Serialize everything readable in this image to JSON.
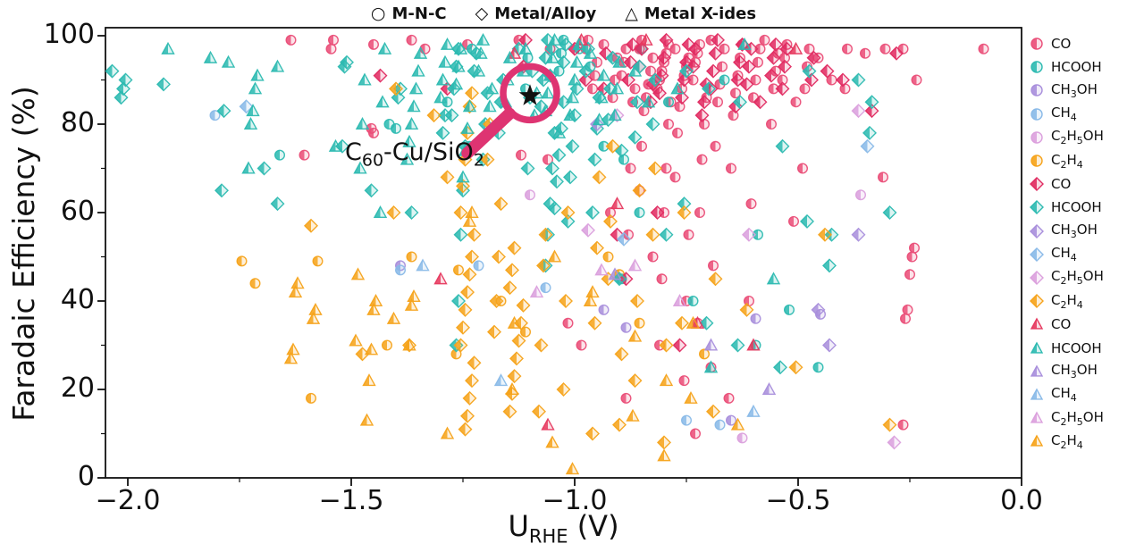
{
  "figure": {
    "shape_legend": [
      {
        "glyph": "○",
        "label": "M-N-C"
      },
      {
        "glyph": "◇",
        "label": "Metal/Alloy"
      },
      {
        "glyph": "△",
        "label": "Metal X-ides"
      }
    ],
    "x_axis": {
      "label_main": "U",
      "label_sub": "RHE",
      "label_unit": " (V)",
      "tick_labels": [
        "−2.0",
        "−1.5",
        "−1.0",
        "−0.5",
        "0.0"
      ]
    },
    "y_axis": {
      "label": "Faradaic Efficiency (%)",
      "tick_labels": [
        "0",
        "20",
        "40",
        "60",
        "80",
        "100"
      ]
    }
  },
  "chart_data": {
    "type": "scatter",
    "title": "",
    "xlabel": "U_RHE (V)",
    "ylabel": "Faradaic Efficiency (%)",
    "xlim": [
      -2.05,
      0.0
    ],
    "ylim": [
      0,
      102
    ],
    "xticks": [
      -2.0,
      -1.5,
      -1.0,
      -0.5,
      0.0
    ],
    "xticks_minor": [
      -1.75,
      -1.25,
      -0.75,
      -0.25
    ],
    "yticks": [
      0,
      20,
      40,
      60,
      80,
      100
    ],
    "yticks_minor": [
      10,
      30,
      50,
      70,
      90
    ],
    "grid": false,
    "legend_position": "right",
    "shape_groups": [
      {
        "shape": "circle",
        "label": "M-N-C"
      },
      {
        "shape": "diamond",
        "label": "Metal/Alloy"
      },
      {
        "shape": "triangle",
        "label": "Metal X-ides"
      }
    ],
    "product_colors": {
      "CO": "#E8426E",
      "HCOOH": "#2DBAB1",
      "CH3OH": "#A98FDC",
      "CH4": "#8ABAE8",
      "C2H5OH": "#DBA0DD",
      "C2H4": "#F6A31B"
    },
    "annotation": {
      "text": "C60-Cu/SiO2",
      "star": [
        -1.1,
        87
      ],
      "accent_color": "#DE3472",
      "star_color": "#111111"
    },
    "series": [
      {
        "shape": "circle",
        "product": "CO",
        "color": "#EA4E78",
        "cols": {
          "-1.62": [
            99,
            73
          ],
          "-1.55": [
            99,
            97
          ],
          "-1.45": [
            98,
            79
          ],
          "-1.44": [
            78
          ],
          "-1.35": [
            99,
            97
          ],
          "-1.25": [
            98
          ],
          "-1.13": [
            99
          ],
          "-1.12": [
            73
          ],
          "-1.05": [
            97,
            72
          ],
          "-1.0": [
            35,
            30
          ],
          "-0.98": [
            99,
            97
          ],
          "-0.95": [
            94,
            91,
            88
          ],
          "-0.92": [
            98,
            95,
            90,
            86,
            60
          ],
          "-0.88": [
            97,
            94,
            91,
            88,
            85,
            70,
            55,
            18
          ],
          "-0.84": [
            99,
            97,
            95,
            92,
            89,
            86,
            83,
            75,
            65,
            50
          ],
          "-0.8": [
            98,
            96,
            94,
            92,
            90,
            88,
            85,
            80,
            70,
            60,
            45,
            30
          ],
          "-0.76": [
            97,
            95,
            93,
            91,
            88,
            84,
            78,
            68,
            55,
            40,
            22
          ],
          "-0.72": [
            98,
            96,
            94,
            90,
            86,
            80,
            72,
            60,
            35,
            10
          ],
          "-0.68": [
            99,
            97,
            93,
            89,
            85,
            75,
            48,
            25
          ],
          "-0.64": [
            98,
            95,
            91,
            87,
            82,
            70,
            18
          ],
          "-0.6": [
            97,
            94,
            90,
            86,
            62,
            40
          ],
          "-0.56": [
            99,
            96,
            92,
            88,
            80
          ],
          "-0.52": [
            98,
            95,
            90,
            85,
            58
          ],
          "-0.48": [
            97,
            93,
            88,
            70
          ],
          "-0.44": [
            95,
            90
          ],
          "-0.4": [
            97,
            88
          ],
          "-0.35": [
            96
          ],
          "-0.3": [
            97,
            68
          ],
          "-0.25": [
            97,
            90,
            52,
            50,
            46,
            38,
            36,
            12
          ],
          "-0.1": [
            97
          ]
        }
      },
      {
        "shape": "circle",
        "product": "HCOOH",
        "color": "#2DBAB1",
        "cols": {
          "-1.67": [
            73
          ],
          "-1.42": [
            80
          ],
          "-1.4": [
            79
          ],
          "-1.28": [
            85
          ],
          "-1.22": [
            97,
            75
          ],
          "-1.12": [
            95,
            88
          ],
          "-1.03": [
            99,
            96,
            92
          ],
          "-0.98": [
            97
          ],
          "-0.95": [
            93,
            75
          ],
          "-0.9": [
            72,
            45
          ],
          "-0.85": [
            97,
            60
          ],
          "-0.78": [
            85
          ],
          "-0.72": [
            40
          ],
          "-0.68": [
            90
          ],
          "-0.6": [
            55,
            30
          ],
          "-0.52": [
            38
          ],
          "-0.45": [
            25
          ]
        }
      },
      {
        "shape": "circle",
        "product": "CH3OH",
        "color": "#A98FDC",
        "cols": {
          "-1.38": [
            48
          ],
          "-0.92": [
            38
          ],
          "-0.9": [
            34
          ],
          "-0.66": [
            13
          ],
          "-0.6": [
            36
          ],
          "-0.45": [
            37
          ]
        }
      },
      {
        "shape": "circle",
        "product": "CH4",
        "color": "#8ABAE8",
        "cols": {
          "-1.8": [
            82
          ],
          "-1.38": [
            47
          ],
          "-1.2": [
            48
          ],
          "-1.08": [
            43
          ],
          "-0.76": [
            13
          ],
          "-0.68": [
            12
          ]
        }
      },
      {
        "shape": "circle",
        "product": "C2H5OH",
        "color": "#DBA0DD",
        "cols": {
          "-1.1": [
            64
          ],
          "-0.62": [
            9
          ],
          "-0.35": [
            64
          ]
        }
      },
      {
        "shape": "circle",
        "product": "C2H4",
        "color": "#F6A31B",
        "cols": {
          "-1.73": [
            49,
            44
          ],
          "-1.6": [
            18
          ],
          "-1.58": [
            49
          ],
          "-1.42": [
            30
          ],
          "-1.36": [
            50
          ],
          "-1.25": [
            47,
            28
          ],
          "-1.18": [
            40
          ],
          "-1.12": [
            33
          ],
          "-0.93": [
            50
          ],
          "-0.9": [
            46
          ],
          "-0.85": [
            35
          ],
          "-0.7": [
            28
          ]
        }
      },
      {
        "shape": "diamond",
        "product": "CO",
        "color": "#E02B61",
        "cols": {
          "-1.42": [
            91
          ],
          "-1.3": [
            88
          ],
          "-1.12": [
            99,
            93
          ],
          "-1.0": [
            97
          ],
          "-0.97": [
            90
          ],
          "-0.92": [
            96,
            88,
            55
          ],
          "-0.88": [
            98,
            94,
            90,
            45
          ],
          "-0.84": [
            97,
            93,
            89,
            85
          ],
          "-0.8": [
            99,
            95,
            91,
            87,
            60
          ],
          "-0.76": [
            98,
            94,
            90,
            86,
            30
          ],
          "-0.72": [
            97,
            93,
            89,
            85,
            82
          ],
          "-0.68": [
            99,
            96,
            92,
            88
          ],
          "-0.64": [
            98,
            94,
            90,
            84
          ],
          "-0.6": [
            97,
            93,
            89,
            85
          ],
          "-0.56": [
            98,
            95,
            91
          ],
          "-0.52": [
            97,
            93,
            88
          ],
          "-0.48": [
            95,
            90
          ],
          "-0.44": [
            92
          ],
          "-0.4": [
            90
          ],
          "-0.33": [
            83
          ],
          "-0.27": [
            96
          ]
        }
      },
      {
        "shape": "diamond",
        "product": "HCOOH",
        "color": "#2DBAB1",
        "cols": {
          "-2.02": [
            92,
            90,
            88,
            86
          ],
          "-1.92": [
            89
          ],
          "-1.78": [
            83,
            65
          ],
          "-1.68": [
            70,
            62
          ],
          "-1.52": [
            94,
            93,
            75
          ],
          "-1.45": [
            65
          ],
          "-1.38": [
            88,
            86,
            60
          ],
          "-1.3": [
            82,
            78
          ],
          "-1.26": [
            97,
            93,
            88,
            82,
            75,
            65,
            55,
            40,
            30
          ],
          "-1.21": [
            96,
            92,
            87,
            80,
            72
          ],
          "-1.16": [
            90,
            85,
            78
          ],
          "-1.11": [
            97,
            92,
            86,
            70
          ],
          "-1.06": [
            99,
            95,
            90,
            84,
            78,
            70,
            62,
            55,
            48
          ],
          "-1.04": [
            97,
            91,
            85,
            79,
            73,
            67,
            61
          ],
          "-1.01": [
            98,
            94,
            88,
            82,
            75,
            68,
            58
          ],
          "-0.96": [
            97,
            92,
            86,
            79,
            72,
            60
          ],
          "-0.91": [
            95,
            88,
            81,
            74,
            45
          ],
          "-0.86": [
            93,
            85,
            77
          ],
          "-0.81": [
            90,
            80,
            55
          ],
          "-0.76": [
            92,
            62
          ],
          "-0.7": [
            88,
            35
          ],
          "-0.62": [
            85,
            30
          ],
          "-0.55": [
            75,
            25
          ],
          "-0.48": [
            92,
            58
          ],
          "-0.42": [
            55,
            48
          ],
          "-0.35": [
            90,
            85,
            78
          ],
          "-0.3": [
            60
          ]
        }
      },
      {
        "shape": "diamond",
        "product": "CH3OH",
        "color": "#A98FDC",
        "cols": {
          "-0.95": [
            80
          ],
          "-0.45": [
            38
          ],
          "-0.42": [
            30
          ],
          "-0.35": [
            55
          ]
        }
      },
      {
        "shape": "diamond",
        "product": "CH4",
        "color": "#8ABAE8",
        "cols": {
          "-1.75": [
            84
          ],
          "-0.9": [
            54
          ],
          "-0.35": [
            75
          ]
        }
      },
      {
        "shape": "diamond",
        "product": "C2H5OH",
        "color": "#DBA0DD",
        "cols": {
          "-0.97": [
            56
          ],
          "-0.9": [
            82
          ],
          "-0.6": [
            55
          ],
          "-0.35": [
            83
          ],
          "-0.3": [
            8
          ]
        }
      },
      {
        "shape": "diamond",
        "product": "C2H4",
        "color": "#F6A31B",
        "cols": {
          "-1.6": [
            57
          ],
          "-1.48": [
            28
          ],
          "-1.4": [
            88,
            60
          ],
          "-1.36": [
            30
          ],
          "-1.3": [
            82,
            68
          ],
          "-1.24": [
            87,
            84,
            78,
            72,
            66,
            60,
            55,
            50,
            46,
            42,
            38,
            34,
            30,
            26,
            22,
            18,
            14,
            11
          ],
          "-1.18": [
            80,
            72,
            62,
            50,
            40,
            33
          ],
          "-1.13": [
            52,
            47,
            43,
            39,
            35,
            31,
            27,
            23,
            19,
            15
          ],
          "-1.08": [
            55,
            48,
            30,
            15
          ],
          "-1.01": [
            60,
            40,
            20
          ],
          "-0.96": [
            68,
            52,
            35,
            10
          ],
          "-0.91": [
            75,
            58,
            45,
            28,
            12
          ],
          "-0.86": [
            65,
            40,
            22
          ],
          "-0.81": [
            70,
            55,
            30,
            8
          ],
          "-0.76": [
            60,
            35
          ],
          "-0.68": [
            45,
            15
          ],
          "-0.6": [
            38
          ],
          "-0.52": [
            25
          ],
          "-0.45": [
            55
          ],
          "-0.3": [
            12
          ]
        }
      },
      {
        "shape": "triangle",
        "product": "CO",
        "color": "#E6395F",
        "cols": {
          "-1.3": [
            45
          ],
          "-1.13": [
            96
          ],
          "-1.05": [
            12
          ],
          "-0.97": [
            99
          ],
          "-0.92": [
            62
          ],
          "-0.85": [
            99
          ],
          "-0.73": [
            35
          ],
          "-0.6": [
            30
          ],
          "-0.5": [
            97
          ]
        }
      },
      {
        "shape": "triangle",
        "product": "HCOOH",
        "color": "#2DBAB1",
        "cols": {
          "-1.9": [
            97
          ],
          "-1.8": [
            95
          ],
          "-1.79": [
            94
          ],
          "-1.72": [
            91,
            88,
            83,
            80,
            70
          ],
          "-1.65": [
            93
          ],
          "-1.55": [
            75
          ],
          "-1.48": [
            90,
            80,
            70
          ],
          "-1.42": [
            97,
            85,
            60
          ],
          "-1.36": [
            96,
            92,
            88,
            84,
            80,
            76,
            72
          ],
          "-1.3": [
            98,
            94,
            90,
            86
          ],
          "-1.25": [
            97,
            93,
            89,
            84,
            79,
            74,
            68
          ],
          "-1.2": [
            99,
            96,
            92,
            88,
            84
          ],
          "-1.15": [
            95,
            90,
            85
          ],
          "-1.1": [
            97,
            92,
            87,
            82
          ],
          "-1.05": [
            99,
            95,
            91,
            87,
            83,
            78
          ],
          "-1.0": [
            98,
            94,
            90,
            86,
            82
          ],
          "-0.95": [
            96,
            91,
            86,
            81
          ],
          "-0.9": [
            94,
            88,
            82
          ],
          "-0.85": [
            92,
            85
          ],
          "-0.78": [
            88
          ],
          "-0.7": [
            25
          ],
          "-0.62": [
            98
          ],
          "-0.55": [
            45
          ]
        }
      },
      {
        "shape": "triangle",
        "product": "CH3OH",
        "color": "#A98FDC",
        "cols": {
          "-0.9": [
            46
          ],
          "-0.68": [
            30
          ],
          "-0.58": [
            20
          ]
        }
      },
      {
        "shape": "triangle",
        "product": "CH4",
        "color": "#8ABAE8",
        "cols": {
          "-1.35": [
            48
          ],
          "-1.17": [
            22
          ],
          "-0.6": [
            15
          ]
        }
      },
      {
        "shape": "triangle",
        "product": "C2H5OH",
        "color": "#DBA0DD",
        "cols": {
          "-1.08": [
            42
          ],
          "-0.93": [
            47
          ],
          "-0.85": [
            48
          ],
          "-0.78": [
            40
          ]
        }
      },
      {
        "shape": "triangle",
        "product": "C2H4",
        "color": "#F6A31B",
        "cols": {
          "-1.63": [
            44,
            42,
            29,
            27
          ],
          "-1.57": [
            38,
            36
          ],
          "-1.5": [
            46,
            31
          ],
          "-1.45": [
            40,
            38,
            29,
            22,
            13
          ],
          "-1.42": [
            36
          ],
          "-1.37": [
            41,
            39,
            30
          ],
          "-1.28": [
            10
          ],
          "-1.22": [
            60,
            58
          ],
          "-1.15": [
            35,
            20
          ],
          "-1.05": [
            50,
            8
          ],
          "-1.0": [
            2
          ],
          "-0.95": [
            42,
            40
          ],
          "-0.88": [
            32,
            14
          ],
          "-0.8": [
            22,
            5
          ],
          "-0.73": [
            35,
            18
          ],
          "-0.62": [
            12
          ]
        }
      }
    ]
  }
}
